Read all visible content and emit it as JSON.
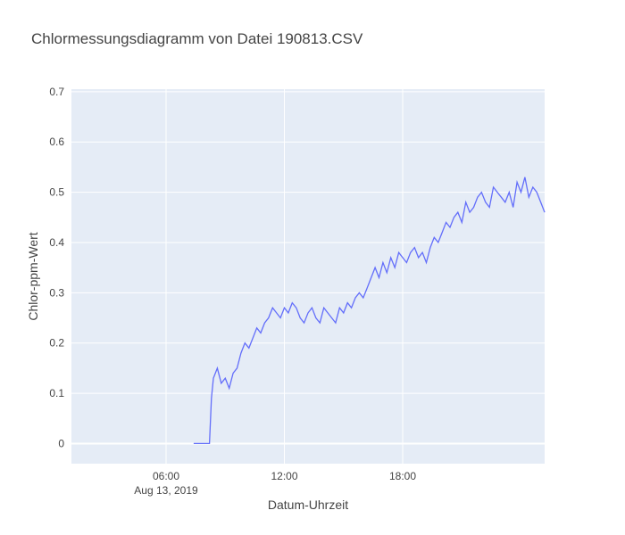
{
  "chart_data": {
    "type": "line",
    "title": "Chlormessungsdiagramm von Datei 190813.CSV",
    "xlabel": "Datum-Uhrzeit",
    "ylabel": "Chlor-ppm-Wert",
    "x_range_hours": [
      1.2,
      25.2
    ],
    "ylim": [
      -0.04,
      0.705
    ],
    "x_tick_hours": [
      6,
      12,
      18
    ],
    "x_tick_labels": [
      "06:00",
      "12:00",
      "18:00"
    ],
    "x_tick_date_label": "Aug 13, 2019",
    "y_ticks": [
      0,
      0.1,
      0.2,
      0.3,
      0.4,
      0.5,
      0.6,
      0.7
    ],
    "y_tick_labels": [
      "0",
      "0.1",
      "0.2",
      "0.3",
      "0.4",
      "0.5",
      "0.6",
      "0.7"
    ],
    "grid": true,
    "line_color": "#636efa",
    "plot_bg": "#e5ecf6",
    "series": [
      {
        "x_hours": [
          7.4,
          8.2,
          8.3,
          8.4,
          8.6,
          8.8,
          9.0,
          9.2,
          9.4,
          9.6,
          9.8,
          10.0,
          10.2,
          10.4,
          10.6,
          10.8,
          11.0,
          11.2,
          11.4,
          11.6,
          11.8,
          12.0,
          12.2,
          12.4,
          12.6,
          12.8,
          13.0,
          13.2,
          13.4,
          13.6,
          13.8,
          14.0,
          14.2,
          14.4,
          14.6,
          14.8,
          15.0,
          15.2,
          15.4,
          15.6,
          15.8,
          16.0,
          16.2,
          16.4,
          16.6,
          16.8,
          17.0,
          17.2,
          17.4,
          17.6,
          17.8,
          18.0,
          18.2,
          18.4,
          18.6,
          18.8,
          19.0,
          19.2,
          19.4,
          19.6,
          19.8,
          20.0,
          20.2,
          20.4,
          20.6,
          20.8,
          21.0,
          21.2,
          21.4,
          21.6,
          21.8,
          22.0,
          22.2,
          22.4,
          22.6,
          22.8,
          23.0,
          23.2,
          23.4,
          23.6,
          23.8,
          24.0,
          24.2,
          24.4,
          24.6,
          24.8,
          25.0,
          25.2
        ],
        "y": [
          0.0,
          0.0,
          0.09,
          0.13,
          0.15,
          0.12,
          0.13,
          0.11,
          0.14,
          0.15,
          0.18,
          0.2,
          0.19,
          0.21,
          0.23,
          0.22,
          0.24,
          0.25,
          0.27,
          0.26,
          0.25,
          0.27,
          0.26,
          0.28,
          0.27,
          0.25,
          0.24,
          0.26,
          0.27,
          0.25,
          0.24,
          0.27,
          0.26,
          0.25,
          0.24,
          0.27,
          0.26,
          0.28,
          0.27,
          0.29,
          0.3,
          0.29,
          0.31,
          0.33,
          0.35,
          0.33,
          0.36,
          0.34,
          0.37,
          0.35,
          0.38,
          0.37,
          0.36,
          0.38,
          0.39,
          0.37,
          0.38,
          0.36,
          0.39,
          0.41,
          0.4,
          0.42,
          0.44,
          0.43,
          0.45,
          0.46,
          0.44,
          0.48,
          0.46,
          0.47,
          0.49,
          0.5,
          0.48,
          0.47,
          0.51,
          0.5,
          0.49,
          0.48,
          0.5,
          0.47,
          0.52,
          0.5,
          0.53,
          0.49,
          0.51,
          0.5,
          0.48,
          0.46
        ]
      }
    ]
  }
}
